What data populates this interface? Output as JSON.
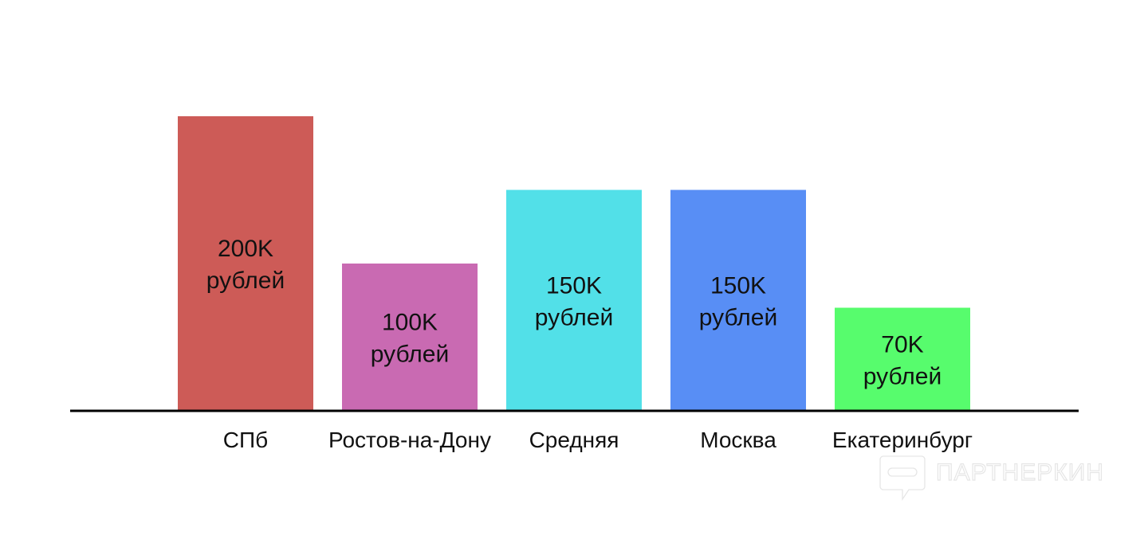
{
  "chart_data": {
    "type": "bar",
    "title": "",
    "xlabel": "",
    "ylabel": "",
    "ylim": [
      0,
      200
    ],
    "grid": false,
    "categories": [
      "СПб",
      "Ростов-на-Дону",
      "Средняя",
      "Москва",
      "Екатеринбург"
    ],
    "values": [
      200,
      100,
      150,
      150,
      70
    ],
    "value_labels": [
      [
        "200K",
        "рублей"
      ],
      [
        "100K",
        "рублей"
      ],
      [
        "150K",
        "рублей"
      ],
      [
        "150K",
        "рублей"
      ],
      [
        "70K",
        "рублей"
      ]
    ],
    "colors": [
      "#CD5B57",
      "#C96AB2",
      "#52E0E8",
      "#588EF5",
      "#57FC6D"
    ]
  },
  "watermark": "ПАРТНЕРКИН"
}
